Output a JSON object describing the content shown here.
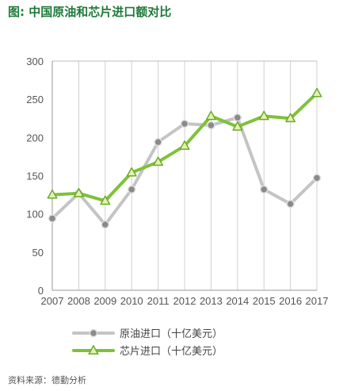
{
  "title": "图: 中国原油和芯片进口额对比",
  "source": "资料来源：德勤分析",
  "chart_data": {
    "type": "line",
    "title": "图: 中国原油和芯片进口额对比",
    "xlabel": "",
    "ylabel": "",
    "x": [
      "2007",
      "2008",
      "2009",
      "2010",
      "2011",
      "2012",
      "2013",
      "2014",
      "2015",
      "2016",
      "2017"
    ],
    "yticks": [
      0,
      50,
      100,
      150,
      200,
      250,
      300
    ],
    "ylim": [
      0,
      300
    ],
    "grid": "vertical",
    "legend": "bottom",
    "series": [
      {
        "name": "原油进口（十亿美元）",
        "color": "#c4c4c4",
        "marker": "circle",
        "values": [
          94,
          127,
          86,
          132,
          194,
          218,
          216,
          226,
          132,
          113,
          147
        ]
      },
      {
        "name": "芯片进口（十亿美元）",
        "color": "#7ec13a",
        "marker": "triangle",
        "values": [
          125,
          127,
          117,
          154,
          168,
          189,
          228,
          214,
          228,
          225,
          258
        ]
      }
    ]
  }
}
